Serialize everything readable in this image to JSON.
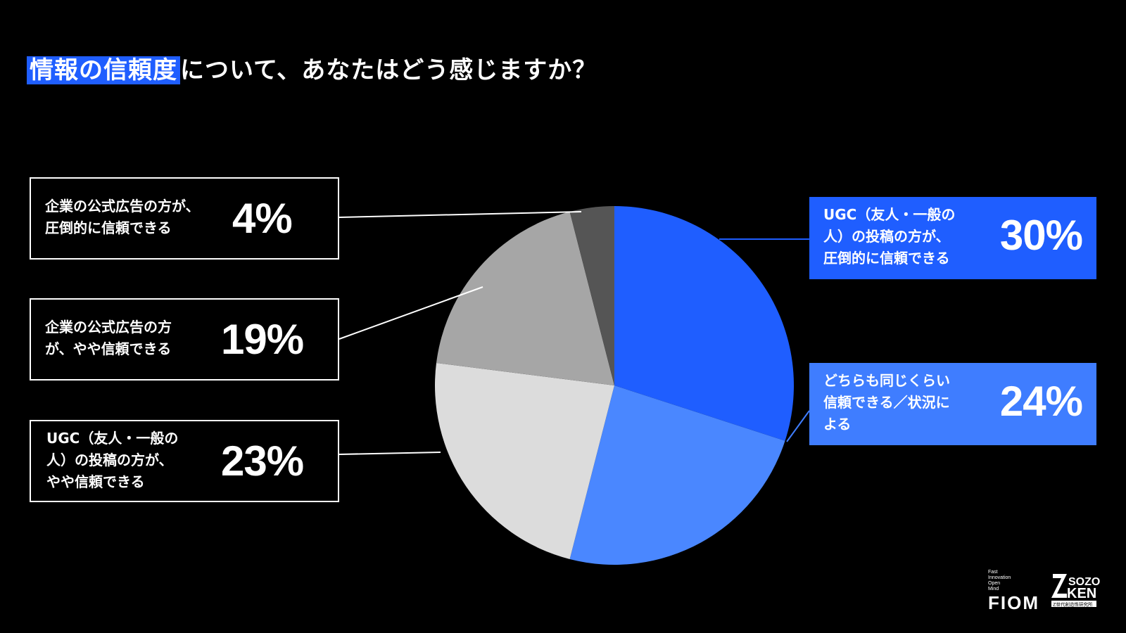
{
  "question": {
    "highlight": "情報の信頼度",
    "rest": "について、あなたはどう感じますか？"
  },
  "colors": {
    "accent": "#1f5eff",
    "accent_light": "#3f7dff",
    "background": "#000000"
  },
  "chart_data": {
    "type": "pie",
    "title": "情報の信頼度について、あなたはどう感じますか？",
    "slices": [
      {
        "label": "UGC（友人・一般の人）の投稿の方が、圧倒的に信頼できる",
        "value": 30,
        "pct_label": "30%",
        "color": "#1f5eff"
      },
      {
        "label": "どちらも同じくらい信頼できる／状況による",
        "value": 24,
        "pct_label": "24%",
        "color": "#4a87ff"
      },
      {
        "label": "UGC（友人・一般の人）の投稿の方が、やや信頼できる",
        "value": 23,
        "pct_label": "23%",
        "color": "#dcdcdc"
      },
      {
        "label": "企業の公式広告の方が、やや信頼できる",
        "value": 19,
        "pct_label": "19%",
        "color": "#a6a6a6"
      },
      {
        "label": "企業の公式広告の方が、圧倒的に信頼できる",
        "value": 4,
        "pct_label": "4%",
        "color": "#555555"
      }
    ],
    "start": "12 o'clock",
    "direction": "clockwise"
  },
  "callouts": {
    "ugc_strong": {
      "text": "UGC（友人・一般の\n人）の投稿の方が、\n圧倒的に信頼できる",
      "pct": "30%"
    },
    "neutral": {
      "text": "どちらも同じくらい\n信頼できる／状況に\nよる",
      "pct": "24%"
    },
    "ugc_slight": {
      "text": "UGC（友人・一般の\n人）の投稿の方が、\nやや信頼できる",
      "pct": "23%"
    },
    "corp_slight": {
      "text": "企業の公式広告の方\nが、やや信頼できる",
      "pct": "19%"
    },
    "corp_strong": {
      "text": "企業の公式広告の方が、\n圧倒的に信頼できる",
      "pct": "4%"
    }
  },
  "logos": {
    "fiom_small": [
      "Fast",
      "Innovation",
      "Open",
      "Mind"
    ],
    "fiom": "FIOM",
    "zken_top": "SOZO",
    "zken_bottom": "KEN",
    "zken_caption": "Z世代創造性研究所"
  }
}
